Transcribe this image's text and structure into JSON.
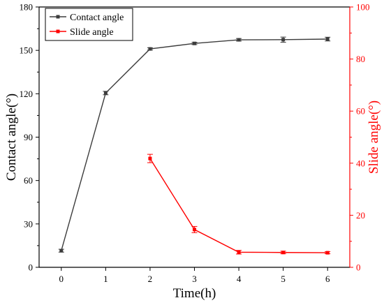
{
  "chart_data": {
    "type": "line",
    "xlabel": "Time(h)",
    "x_ticks": [
      0,
      1,
      2,
      3,
      4,
      5,
      6
    ],
    "xlim": [
      -0.5,
      6.5
    ],
    "y_left": {
      "label": "Contact angle(°)",
      "lim": [
        0,
        180
      ],
      "ticks": [
        0,
        30,
        60,
        90,
        120,
        150,
        180
      ],
      "color": "#000000"
    },
    "y_right": {
      "label": "Slide angle(°)",
      "lim": [
        0,
        100
      ],
      "ticks": [
        0,
        20,
        40,
        60,
        80,
        100
      ],
      "color": "#ff0000"
    },
    "legend_position": "top-left",
    "series": [
      {
        "name": "Contact angle",
        "axis": "left",
        "color": "#3c3c3c",
        "marker": "square",
        "x": [
          0,
          1,
          2,
          3,
          4,
          5,
          6
        ],
        "values": [
          11.5,
          120.5,
          151,
          154.8,
          157.3,
          157.4,
          157.8
        ],
        "errors": [
          1.0,
          1.2,
          0.8,
          0.8,
          0.9,
          1.8,
          1.3
        ]
      },
      {
        "name": "Slide angle",
        "axis": "right",
        "color": "#ff0000",
        "marker": "square",
        "x": [
          2,
          3,
          4,
          5,
          6
        ],
        "values": [
          41.8,
          14.5,
          5.8,
          5.7,
          5.6
        ],
        "errors": [
          1.6,
          1.2,
          0.7,
          0.5,
          0.4
        ]
      }
    ]
  }
}
